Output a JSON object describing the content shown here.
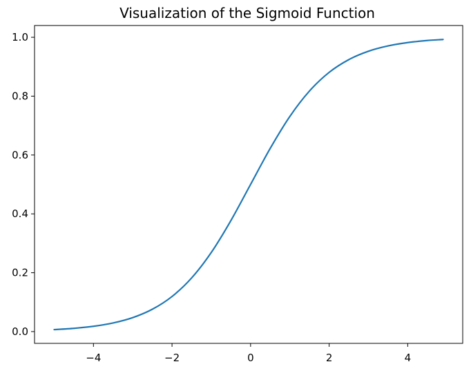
{
  "chart_data": {
    "type": "line",
    "title": "Visualization of the Sigmoid Function",
    "xlabel": "",
    "ylabel": "",
    "xlim": [
      -5.5,
      5.4
    ],
    "ylim": [
      -0.04,
      1.04
    ],
    "x_ticks": [
      -4,
      -2,
      0,
      2,
      4
    ],
    "x_tick_labels": [
      "−4",
      "−2",
      "0",
      "2",
      "4"
    ],
    "y_ticks": [
      0.0,
      0.2,
      0.4,
      0.6,
      0.8,
      1.0
    ],
    "y_tick_labels": [
      "0.0",
      "0.2",
      "0.4",
      "0.6",
      "0.8",
      "1.0"
    ],
    "grid": false,
    "legend": "none",
    "series": [
      {
        "color": "#1f77b4",
        "x": [
          -5.0,
          -4.5,
          -4.0,
          -3.5,
          -3.0,
          -2.5,
          -2.0,
          -1.5,
          -1.0,
          -0.5,
          0.0,
          0.5,
          1.0,
          1.5,
          2.0,
          2.5,
          3.0,
          3.5,
          4.0,
          4.5,
          4.9
        ],
        "y": [
          0.0067,
          0.011,
          0.018,
          0.0293,
          0.0474,
          0.0759,
          0.1192,
          0.1824,
          0.2689,
          0.3775,
          0.5,
          0.6225,
          0.7311,
          0.8176,
          0.8808,
          0.9241,
          0.9526,
          0.9707,
          0.982,
          0.989,
          0.9926
        ]
      }
    ]
  }
}
